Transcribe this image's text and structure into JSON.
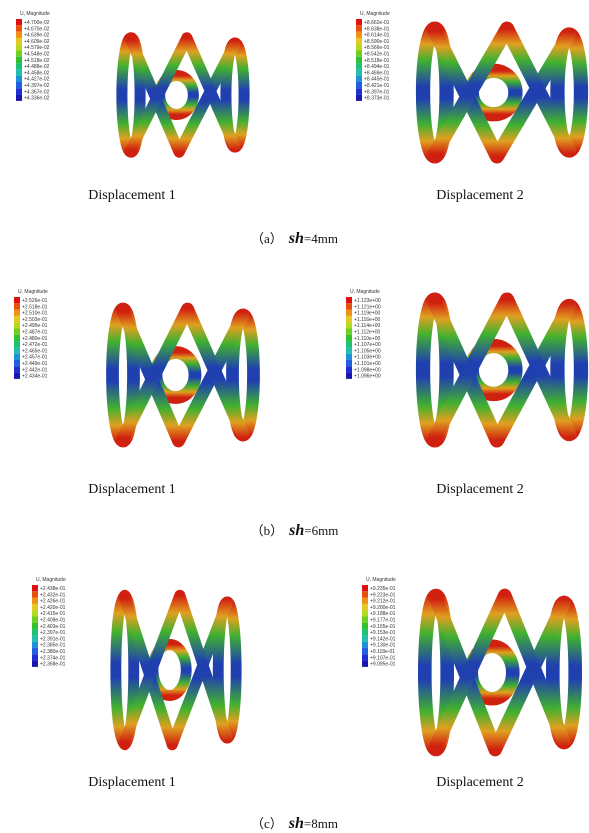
{
  "figures": [
    {
      "caption": {
        "label": "（a）",
        "var": "sh",
        "value": "=4mm"
      },
      "panels": [
        {
          "subtitle": "Displacement 1",
          "legend_title": "U, Magnitude",
          "legend": [
            "+4.700e-02",
            "+4.670e-02",
            "+4.639e-02",
            "+4.609e-02",
            "+4.579e-02",
            "+4.548e-02",
            "+4.518e-02",
            "+4.488e-02",
            "+4.458e-02",
            "+4.427e-02",
            "+4.397e-02",
            "+4.367e-02",
            "+4.336e-02"
          ]
        },
        {
          "subtitle": "Displacement 2",
          "legend_title": "U, Magnitude",
          "legend": [
            "+8.662e-01",
            "+8.638e-01",
            "+8.614e-01",
            "+8.590e-01",
            "+8.566e-01",
            "+8.542e-01",
            "+8.518e-01",
            "+8.494e-01",
            "+8.469e-01",
            "+8.445e-01",
            "+8.421e-01",
            "+8.397e-01",
            "+8.373e-01"
          ]
        }
      ]
    },
    {
      "caption": {
        "label": "（b）",
        "var": "sh",
        "value": "=6mm"
      },
      "panels": [
        {
          "subtitle": "Displacement 1",
          "legend_title": "U, Magnitude",
          "legend": [
            "+2.526e-01",
            "+2.518e-01",
            "+2.510e-01",
            "+2.503e-01",
            "+2.495e-01",
            "+2.487e-01",
            "+2.480e-01",
            "+2.472e-01",
            "+2.465e-01",
            "+2.457e-01",
            "+2.449e-01",
            "+2.442e-01",
            "+2.434e-01"
          ]
        },
        {
          "subtitle": "Displacement 2",
          "legend_title": "U, Magnitude",
          "legend": [
            "+1.123e+00",
            "+1.121e+00",
            "+1.119e+00",
            "+1.116e+00",
            "+1.114e+00",
            "+1.112e+00",
            "+1.110e+00",
            "+1.107e+00",
            "+1.105e+00",
            "+1.103e+00",
            "+1.101e+00",
            "+1.098e+00",
            "+1.096e+00"
          ]
        }
      ]
    },
    {
      "caption": {
        "label": "（c）",
        "var": "sh",
        "value": "=8mm"
      },
      "panels": [
        {
          "subtitle": "Displacement 1",
          "legend_title": "U, Magnitude",
          "legend": [
            "+2.438e-01",
            "+2.432e-01",
            "+2.426e-01",
            "+2.420e-01",
            "+2.415e-01",
            "+2.409e-01",
            "+2.403e-01",
            "+2.397e-01",
            "+2.391e-01",
            "+2.385e-01",
            "+2.380e-01",
            "+2.374e-01",
            "+2.368e-01"
          ]
        },
        {
          "subtitle": "Displacement 2",
          "legend_title": "U, Magnitude",
          "legend": [
            "+9.235e-01",
            "+9.223e-01",
            "+9.212e-01",
            "+9.200e-01",
            "+9.188e-01",
            "+9.177e-01",
            "+9.165e-01",
            "+9.153e-01",
            "+9.142e-01",
            "+9.130e-01",
            "+9.118e-01",
            "+9.107e-01",
            "+9.095e-01"
          ]
        }
      ]
    }
  ]
}
